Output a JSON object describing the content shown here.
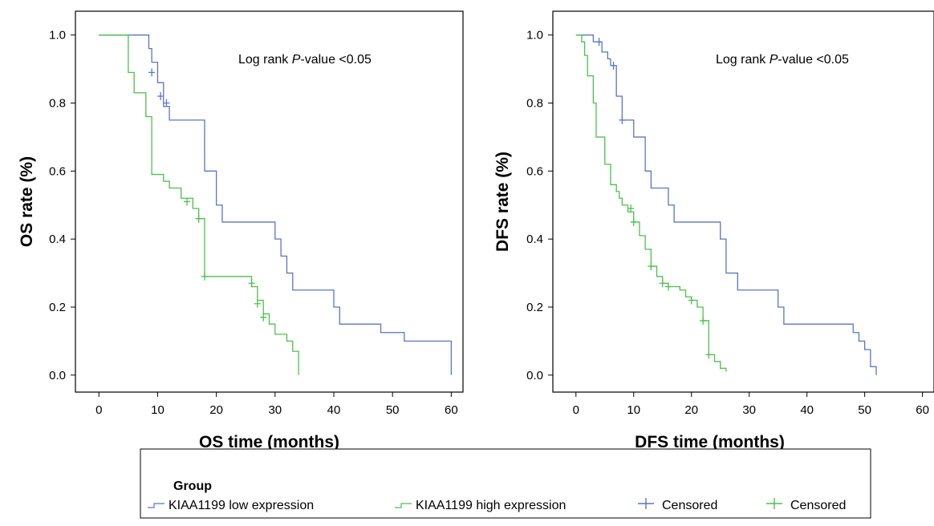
{
  "chart_data": [
    {
      "type": "line",
      "subtype": "kaplan-meier",
      "xlabel": "OS time (months)",
      "ylabel": "OS rate (%)",
      "xticks": [
        0,
        10,
        20,
        30,
        40,
        50,
        60
      ],
      "yticks": [
        "0.0",
        "0.2",
        "0.4",
        "0.6",
        "0.8",
        "1.0"
      ],
      "xlim": [
        -4,
        62
      ],
      "ylim": [
        -0.05,
        1.07
      ],
      "annotation": {
        "prefix": "Log rank ",
        "italic": "P",
        "suffix": "-value <0.05"
      },
      "series": [
        {
          "name": "KIAA1199 low expression",
          "color": "#5b74c8",
          "steps": [
            [
              0,
              1.0
            ],
            [
              8.5,
              0.96
            ],
            [
              9,
              0.92
            ],
            [
              10,
              0.86
            ],
            [
              11,
              0.79
            ],
            [
              12,
              0.75
            ],
            [
              18,
              0.6
            ],
            [
              20,
              0.5
            ],
            [
              21,
              0.45
            ],
            [
              30,
              0.4
            ],
            [
              31,
              0.35
            ],
            [
              32,
              0.3
            ],
            [
              33,
              0.25
            ],
            [
              40,
              0.2
            ],
            [
              41,
              0.15
            ],
            [
              48,
              0.125
            ],
            [
              52,
              0.1
            ],
            [
              60,
              0.0
            ]
          ],
          "censored": [
            [
              9,
              0.89
            ],
            [
              10.5,
              0.82
            ],
            [
              11.5,
              0.8
            ]
          ]
        },
        {
          "name": "KIAA1199 high expression",
          "color": "#4cc04c",
          "steps": [
            [
              0,
              1.0
            ],
            [
              5,
              0.89
            ],
            [
              6,
              0.83
            ],
            [
              8,
              0.76
            ],
            [
              9,
              0.59
            ],
            [
              11,
              0.57
            ],
            [
              12,
              0.55
            ],
            [
              14,
              0.52
            ],
            [
              16,
              0.49
            ],
            [
              17,
              0.46
            ],
            [
              18,
              0.29
            ],
            [
              26,
              0.26
            ],
            [
              27,
              0.22
            ],
            [
              28,
              0.18
            ],
            [
              29,
              0.15
            ],
            [
              30,
              0.12
            ],
            [
              32,
              0.1
            ],
            [
              33,
              0.07
            ],
            [
              34,
              0.0
            ]
          ],
          "censored": [
            [
              15,
              0.51
            ],
            [
              17,
              0.46
            ],
            [
              18,
              0.29
            ],
            [
              26,
              0.27
            ],
            [
              27,
              0.21
            ],
            [
              28,
              0.17
            ]
          ]
        }
      ]
    },
    {
      "type": "line",
      "subtype": "kaplan-meier",
      "xlabel": "DFS time (months)",
      "ylabel": "DFS rate (%)",
      "xticks": [
        0,
        10,
        20,
        30,
        40,
        50,
        60
      ],
      "yticks": [
        "0.0",
        "0.2",
        "0.4",
        "0.6",
        "0.8",
        "1.0"
      ],
      "xlim": [
        -4,
        62
      ],
      "ylim": [
        -0.05,
        1.07
      ],
      "annotation": {
        "prefix": "Log rank ",
        "italic": "P",
        "suffix": "-value <0.05"
      },
      "series": [
        {
          "name": "KIAA1199 low expression",
          "color": "#5b74c8",
          "steps": [
            [
              0,
              1.0
            ],
            [
              3,
              0.98
            ],
            [
              4.5,
              0.95
            ],
            [
              5.5,
              0.93
            ],
            [
              6,
              0.91
            ],
            [
              7,
              0.82
            ],
            [
              8,
              0.75
            ],
            [
              9,
              0.75
            ],
            [
              10,
              0.7
            ],
            [
              12,
              0.6
            ],
            [
              13,
              0.55
            ],
            [
              16,
              0.5
            ],
            [
              17,
              0.45
            ],
            [
              25,
              0.4
            ],
            [
              26,
              0.3
            ],
            [
              28,
              0.25
            ],
            [
              35,
              0.2
            ],
            [
              36,
              0.15
            ],
            [
              48,
              0.125
            ],
            [
              49,
              0.1
            ],
            [
              50,
              0.075
            ],
            [
              51,
              0.025
            ],
            [
              52,
              0.0
            ]
          ],
          "censored": [
            [
              4,
              0.98
            ],
            [
              6.5,
              0.91
            ],
            [
              8,
              0.75
            ]
          ]
        },
        {
          "name": "KIAA1199 high expression",
          "color": "#4cc04c",
          "steps": [
            [
              0,
              1.0
            ],
            [
              1,
              0.98
            ],
            [
              1.5,
              0.94
            ],
            [
              2,
              0.88
            ],
            [
              3,
              0.8
            ],
            [
              3.5,
              0.7
            ],
            [
              5,
              0.62
            ],
            [
              6,
              0.56
            ],
            [
              7,
              0.54
            ],
            [
              7.5,
              0.52
            ],
            [
              8,
              0.5
            ],
            [
              9,
              0.48
            ],
            [
              10,
              0.45
            ],
            [
              11,
              0.41
            ],
            [
              12,
              0.37
            ],
            [
              13,
              0.32
            ],
            [
              14,
              0.29
            ],
            [
              15,
              0.27
            ],
            [
              16,
              0.26
            ],
            [
              18,
              0.25
            ],
            [
              19,
              0.23
            ],
            [
              20,
              0.22
            ],
            [
              21,
              0.2
            ],
            [
              22,
              0.16
            ],
            [
              23,
              0.06
            ],
            [
              24,
              0.04
            ],
            [
              25,
              0.02
            ],
            [
              26,
              0.01
            ]
          ],
          "censored": [
            [
              9.5,
              0.49
            ],
            [
              10,
              0.45
            ],
            [
              13,
              0.32
            ],
            [
              15,
              0.27
            ],
            [
              16,
              0.26
            ],
            [
              20,
              0.22
            ],
            [
              22,
              0.16
            ],
            [
              23,
              0.06
            ]
          ]
        }
      ]
    }
  ],
  "legend": {
    "title": "Group",
    "items": [
      {
        "label": "KIAA1199 low expression",
        "kind": "line",
        "color": "#5b74c8"
      },
      {
        "label": "KIAA1199 high expression",
        "kind": "line",
        "color": "#4cc04c"
      },
      {
        "label": "Censored",
        "kind": "censor",
        "color": "#5b74c8"
      },
      {
        "label": "Censored",
        "kind": "censor",
        "color": "#4cc04c"
      }
    ]
  }
}
